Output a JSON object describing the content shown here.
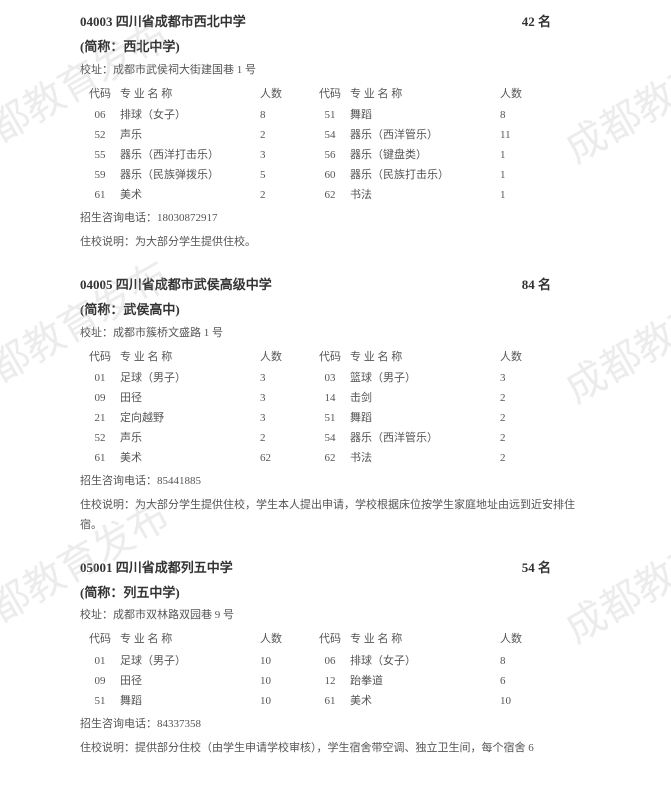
{
  "watermark_text": "成都教育发布",
  "watermark_color": "rgba(180,180,180,0.25)",
  "watermark_fontsize": 40,
  "text_color": "#333333",
  "secondary_text_color": "#555555",
  "background_color": "#ffffff",
  "base_fontsize": 12,
  "small_fontsize": 11,
  "header_fontsize": 13,
  "table_headers": {
    "code": "代码",
    "major": "专 业 名   称",
    "count": "人数"
  },
  "labels": {
    "short_prefix": "(简称：",
    "short_suffix": ")",
    "address_prefix": "校址：",
    "phone_prefix": "招生咨询电话：",
    "housing_prefix": "住校说明：",
    "count_suffix": " 名"
  },
  "schools": [
    {
      "code": "04003",
      "name": "四川省成都市西北中学",
      "short": "西北中学",
      "count": "42",
      "address": "成都市武侯祠大街建国巷 1 号",
      "phone": "18030872917",
      "housing": "为大部分学生提供住校。",
      "rows": [
        {
          "lcode": "06",
          "lname": "排球（女子）",
          "lcount": "8",
          "rcode": "51",
          "rname": "舞蹈",
          "rcount": "8"
        },
        {
          "lcode": "52",
          "lname": "声乐",
          "lcount": "2",
          "rcode": "54",
          "rname": "器乐（西洋管乐）",
          "rcount": "11"
        },
        {
          "lcode": "55",
          "lname": "器乐（西洋打击乐）",
          "lcount": "3",
          "rcode": "56",
          "rname": "器乐（键盘类）",
          "rcount": "1"
        },
        {
          "lcode": "59",
          "lname": "器乐（民族弹拨乐）",
          "lcount": "5",
          "rcode": "60",
          "rname": "器乐（民族打击乐）",
          "rcount": "1"
        },
        {
          "lcode": "61",
          "lname": "美术",
          "lcount": "2",
          "rcode": "62",
          "rname": "书法",
          "rcount": "1"
        }
      ]
    },
    {
      "code": "04005",
      "name": "四川省成都市武侯高级中学",
      "short": "武侯高中",
      "count": "84",
      "address": "成都市簇桥文盛路 1 号",
      "phone": "85441885",
      "housing": "为大部分学生提供住校，学生本人提出申请，学校根据床位按学生家庭地址由远到近安排住宿。",
      "rows": [
        {
          "lcode": "01",
          "lname": "足球（男子）",
          "lcount": "3",
          "rcode": "03",
          "rname": "篮球（男子）",
          "rcount": "3"
        },
        {
          "lcode": "09",
          "lname": "田径",
          "lcount": "3",
          "rcode": "14",
          "rname": "击剑",
          "rcount": "2"
        },
        {
          "lcode": "21",
          "lname": "定向越野",
          "lcount": "3",
          "rcode": "51",
          "rname": "舞蹈",
          "rcount": "2"
        },
        {
          "lcode": "52",
          "lname": "声乐",
          "lcount": "2",
          "rcode": "54",
          "rname": "器乐（西洋管乐）",
          "rcount": "2"
        },
        {
          "lcode": "61",
          "lname": "美术",
          "lcount": "62",
          "rcode": "62",
          "rname": "书法",
          "rcount": "2"
        }
      ]
    },
    {
      "code": "05001",
      "name": "四川省成都列五中学",
      "short": "列五中学",
      "count": "54",
      "address": "成都市双林路双园巷 9 号",
      "phone": "84337358",
      "housing": "提供部分住校（由学生申请学校审核），学生宿舍带空调、独立卫生间，每个宿舍 6",
      "rows": [
        {
          "lcode": "01",
          "lname": "足球（男子）",
          "lcount": "10",
          "rcode": "06",
          "rname": "排球（女子）",
          "rcount": "8"
        },
        {
          "lcode": "09",
          "lname": "田径",
          "lcount": "10",
          "rcode": "12",
          "rname": "跆拳道",
          "rcount": "6"
        },
        {
          "lcode": "51",
          "lname": "舞蹈",
          "lcount": "10",
          "rcode": "61",
          "rname": "美术",
          "rcount": "10"
        }
      ]
    }
  ]
}
